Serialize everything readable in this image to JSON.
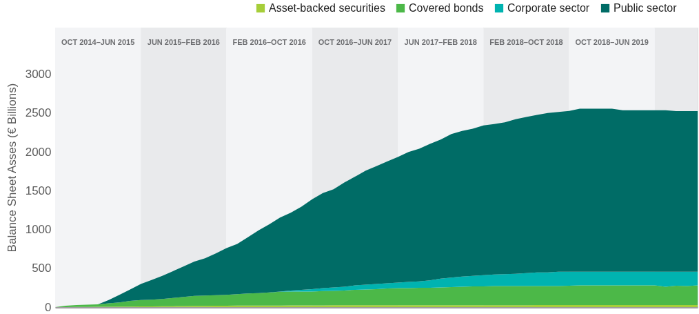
{
  "chart_data": {
    "type": "area",
    "stacked": true,
    "ylabel": "Balance Sheet Asses (€ Billions)",
    "categories": [
      null,
      null,
      null,
      null,
      null,
      null,
      null,
      null,
      null,
      null,
      null,
      null,
      null,
      null,
      null,
      null,
      null,
      null,
      null,
      null,
      null,
      null,
      null,
      null,
      null,
      null,
      null,
      null,
      null,
      null,
      null,
      null,
      null,
      null,
      null,
      null,
      null,
      null,
      null,
      null,
      null,
      null,
      null,
      null,
      null,
      null,
      null,
      null,
      null,
      null,
      null,
      null,
      null,
      null,
      null,
      null,
      null,
      null,
      null,
      null,
      null
    ],
    "series": [
      {
        "name": "Asset-backed securities",
        "color": "#a6ce39",
        "values": [
          0,
          1,
          2,
          3,
          4,
          5,
          6,
          7,
          8,
          10,
          11,
          12,
          14,
          15,
          16,
          17,
          18,
          19,
          19,
          20,
          20,
          21,
          22,
          22,
          23,
          23,
          24,
          24,
          24,
          25,
          25,
          25,
          25,
          25,
          25,
          25,
          25,
          25,
          25,
          25,
          25,
          25,
          25,
          25,
          25,
          26,
          26,
          26,
          26,
          26,
          26,
          26,
          26,
          26,
          26,
          26,
          26,
          26,
          26,
          26,
          26
        ]
      },
      {
        "name": "Covered bonds",
        "color": "#4cb848",
        "values": [
          0,
          16,
          24,
          28,
          31,
          43,
          55,
          72,
          84,
          86,
          94,
          106,
          117,
          129,
          133,
          136,
          139,
          147,
          156,
          159,
          168,
          176,
          179,
          179,
          178,
          183,
          186,
          190,
          199,
          202,
          207,
          215,
          220,
          220,
          224,
          224,
          229,
          233,
          237,
          242,
          242,
          246,
          246,
          246,
          246,
          245,
          245,
          245,
          249,
          254,
          254,
          254,
          254,
          254,
          254,
          254,
          254,
          236,
          249,
          245,
          254
        ]
      },
      {
        "name": "Corporate sector",
        "color": "#00b3b0",
        "values": [
          0,
          0,
          0,
          0,
          0,
          0,
          0,
          0,
          0,
          0,
          0,
          0,
          0,
          0,
          0,
          0,
          0,
          0,
          0,
          0,
          0,
          4,
          13,
          22,
          31,
          39,
          44,
          48,
          57,
          62,
          65,
          66,
          70,
          79,
          83,
          96,
          113,
          122,
          132,
          135,
          144,
          149,
          153,
          157,
          166,
          175,
          175,
          184,
          180,
          175,
          175,
          175,
          175,
          175,
          175,
          175,
          175,
          193,
          180,
          184,
          175
        ]
      },
      {
        "name": "Public sector",
        "color": "#006c66",
        "values": [
          0,
          0,
          0,
          0,
          0,
          43,
          96,
          148,
          205,
          254,
          297,
          345,
          394,
          442,
          481,
          538,
          604,
          647,
          725,
          809,
          879,
          953,
          1002,
          1071,
          1158,
          1224,
          1263,
          1343,
          1399,
          1469,
          1518,
          1570,
          1618,
          1673,
          1707,
          1757,
          1791,
          1850,
          1875,
          1895,
          1930,
          1937,
          1957,
          1993,
          2012,
          2029,
          2055,
          2059,
          2072,
          2101,
          2101,
          2101,
          2101,
          2081,
          2081,
          2081,
          2081,
          2081,
          2069,
          2069,
          2069
        ]
      }
    ],
    "ylim": [
      0,
      3600
    ],
    "yticks": [
      0,
      500,
      1000,
      1500,
      2000,
      2500,
      3000
    ],
    "tick_labels": "y",
    "grid": false,
    "legend": "top right",
    "annotations": [
      "OCT 2014–JUN 2015",
      "JUN 2015–FEB 2016",
      "FEB 2016–OCT 2016",
      "OCT 2016–JUN 2017",
      "JUN 2017–FEB 2018",
      "FEB 2018–OCT 2018",
      "OCT 2018–JUN 2019"
    ]
  }
}
